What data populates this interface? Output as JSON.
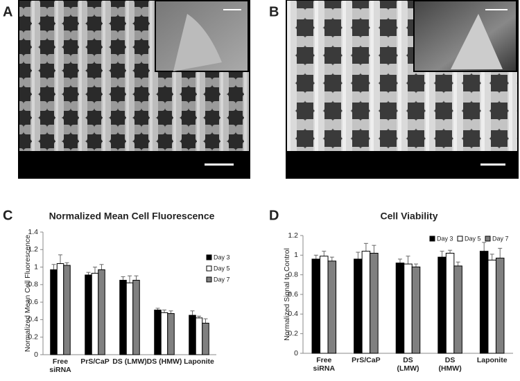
{
  "panel_labels": [
    "A",
    "B",
    "C",
    "D"
  ],
  "chart_data": [
    {
      "type": "bar",
      "title": "Normalized Mean Cell Fluorescence",
      "y_label": "Normalized Mean Cell Fluorescence",
      "categories": [
        "Free\nsiRNA",
        "PrS/CaP",
        "DS (LMW)",
        "DS (HMW)",
        "Laponite"
      ],
      "series": [
        {
          "name": "Day 3",
          "color": "#000000",
          "values": [
            0.97,
            0.91,
            0.85,
            0.51,
            0.45
          ],
          "errors": [
            0.06,
            0.03,
            0.04,
            0.02,
            0.05
          ]
        },
        {
          "name": "Day 5",
          "color": "#ffffff",
          "values": [
            1.04,
            0.93,
            0.82,
            0.48,
            0.42
          ],
          "errors": [
            0.1,
            0.07,
            0.08,
            0.03,
            0.02
          ]
        },
        {
          "name": "Day 7",
          "color": "#808080",
          "values": [
            1.02,
            0.97,
            0.85,
            0.47,
            0.36
          ],
          "errors": [
            0.03,
            0.06,
            0.05,
            0.03,
            0.05
          ]
        }
      ],
      "ylim": [
        0,
        1.4
      ],
      "yticks": [
        0,
        0.2,
        0.4,
        0.6,
        0.8,
        1,
        1.2,
        1.4
      ],
      "legend": "right"
    },
    {
      "type": "bar",
      "title": "Cell Viability",
      "y_label": "Normalized Signal  to Control",
      "categories": [
        "Free\nsiRNA",
        "PrS/CaP",
        "DS\n(LMW)",
        "DS\n(HMW)",
        "Laponite"
      ],
      "series": [
        {
          "name": "Day 3",
          "color": "#000000",
          "values": [
            0.96,
            0.96,
            0.92,
            0.98,
            1.04
          ],
          "errors": [
            0.04,
            0.07,
            0.04,
            0.06,
            0.09
          ]
        },
        {
          "name": "Day 5",
          "color": "#ffffff",
          "values": [
            0.99,
            1.04,
            0.91,
            1.02,
            0.95
          ],
          "errors": [
            0.05,
            0.08,
            0.08,
            0.03,
            0.06
          ]
        },
        {
          "name": "Day 7",
          "color": "#808080",
          "values": [
            0.94,
            1.02,
            0.88,
            0.89,
            0.97
          ],
          "errors": [
            0.04,
            0.08,
            0.03,
            0.04,
            0.1
          ]
        }
      ],
      "ylim": [
        0,
        1.2
      ],
      "yticks": [
        0,
        0.2,
        0.4,
        0.6,
        0.8,
        1,
        1.2
      ],
      "legend": "top"
    }
  ]
}
